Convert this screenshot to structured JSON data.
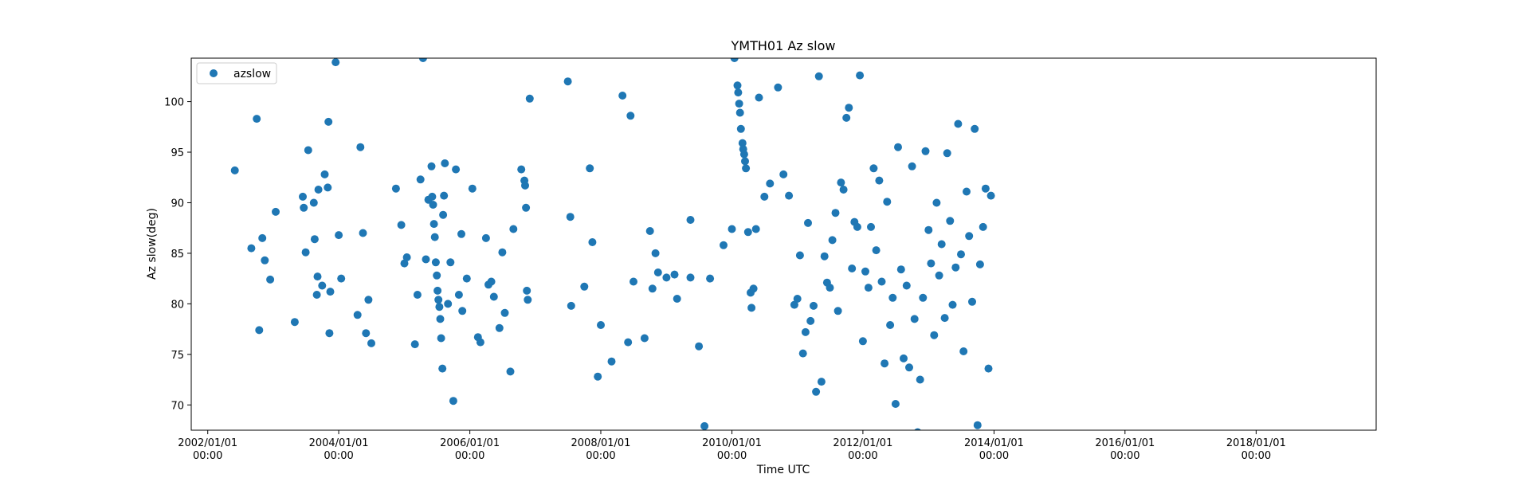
{
  "chart_data": {
    "type": "scatter",
    "title": "YMTH01 Az slow",
    "xlabel": "Time UTC",
    "ylabel": "Az slow(deg)",
    "xlim": [
      "2001-10-01",
      "2019-11-01"
    ],
    "ylim": [
      67.5,
      104.3
    ],
    "x_ticks": [
      {
        "date": "2002-01-01",
        "line1": "2002/01/01",
        "line2": "00:00"
      },
      {
        "date": "2004-01-01",
        "line1": "2004/01/01",
        "line2": "00:00"
      },
      {
        "date": "2006-01-01",
        "line1": "2006/01/01",
        "line2": "00:00"
      },
      {
        "date": "2008-01-01",
        "line1": "2008/01/01",
        "line2": "00:00"
      },
      {
        "date": "2010-01-01",
        "line1": "2010/01/01",
        "line2": "00:00"
      },
      {
        "date": "2012-01-01",
        "line1": "2012/01/01",
        "line2": "00:00"
      },
      {
        "date": "2014-01-01",
        "line1": "2014/01/01",
        "line2": "00:00"
      },
      {
        "date": "2016-01-01",
        "line1": "2016/01/01",
        "line2": "00:00"
      },
      {
        "date": "2018-01-01",
        "line1": "2018/01/01",
        "line2": "00:00"
      }
    ],
    "y_ticks": [
      70,
      75,
      80,
      85,
      90,
      95,
      100
    ],
    "grid": false,
    "legend": {
      "placement": "top-left"
    },
    "marker_color": "#1f77b4",
    "series": [
      {
        "name": "azslow",
        "points": [
          [
            "2002-06-01",
            93.2
          ],
          [
            "2002-09-01",
            85.5
          ],
          [
            "2002-10-01",
            98.3
          ],
          [
            "2002-10-15",
            77.4
          ],
          [
            "2002-11-01",
            86.5
          ],
          [
            "2002-11-15",
            84.3
          ],
          [
            "2002-12-15",
            82.4
          ],
          [
            "2003-01-15",
            89.1
          ],
          [
            "2003-05-01",
            78.2
          ],
          [
            "2003-06-15",
            90.6
          ],
          [
            "2003-06-20",
            89.5
          ],
          [
            "2003-07-01",
            85.1
          ],
          [
            "2003-07-15",
            95.2
          ],
          [
            "2003-08-15",
            90.0
          ],
          [
            "2003-08-20",
            86.4
          ],
          [
            "2003-09-01",
            80.9
          ],
          [
            "2003-09-05",
            82.7
          ],
          [
            "2003-09-10",
            91.3
          ],
          [
            "2003-10-01",
            81.8
          ],
          [
            "2003-10-15",
            92.8
          ],
          [
            "2003-11-01",
            91.5
          ],
          [
            "2003-11-05",
            98.0
          ],
          [
            "2003-11-10",
            77.1
          ],
          [
            "2003-11-15",
            81.2
          ],
          [
            "2003-12-15",
            103.9
          ],
          [
            "2004-01-01",
            86.8
          ],
          [
            "2004-01-15",
            82.5
          ],
          [
            "2004-04-15",
            78.9
          ],
          [
            "2004-05-01",
            95.5
          ],
          [
            "2004-05-15",
            87.0
          ],
          [
            "2004-06-01",
            77.1
          ],
          [
            "2004-06-15",
            80.4
          ],
          [
            "2004-07-01",
            76.1
          ],
          [
            "2004-11-15",
            91.4
          ],
          [
            "2004-12-15",
            87.8
          ],
          [
            "2005-01-15",
            84.6
          ],
          [
            "2005-01-01",
            84.0
          ],
          [
            "2005-03-01",
            76.0
          ],
          [
            "2005-03-15",
            80.9
          ],
          [
            "2005-04-01",
            92.3
          ],
          [
            "2005-04-15",
            104.3
          ],
          [
            "2005-05-01",
            84.4
          ],
          [
            "2005-05-15",
            90.3
          ],
          [
            "2005-06-01",
            93.6
          ],
          [
            "2005-06-05",
            90.6
          ],
          [
            "2005-06-10",
            89.8
          ],
          [
            "2005-06-15",
            87.9
          ],
          [
            "2005-06-20",
            86.6
          ],
          [
            "2005-06-25",
            84.1
          ],
          [
            "2005-07-01",
            82.8
          ],
          [
            "2005-07-05",
            81.3
          ],
          [
            "2005-07-10",
            80.4
          ],
          [
            "2005-07-15",
            79.7
          ],
          [
            "2005-07-20",
            78.5
          ],
          [
            "2005-07-25",
            76.6
          ],
          [
            "2005-08-01",
            73.6
          ],
          [
            "2005-08-05",
            88.8
          ],
          [
            "2005-08-10",
            90.7
          ],
          [
            "2005-08-15",
            93.9
          ],
          [
            "2005-09-01",
            80.0
          ],
          [
            "2005-09-15",
            84.1
          ],
          [
            "2005-10-01",
            70.4
          ],
          [
            "2005-10-15",
            93.3
          ],
          [
            "2005-11-01",
            80.9
          ],
          [
            "2005-11-15",
            86.9
          ],
          [
            "2005-11-20",
            79.3
          ],
          [
            "2005-12-15",
            82.5
          ],
          [
            "2006-01-15",
            91.4
          ],
          [
            "2006-02-15",
            76.7
          ],
          [
            "2006-03-01",
            76.2
          ],
          [
            "2006-04-01",
            86.5
          ],
          [
            "2006-04-15",
            81.9
          ],
          [
            "2006-05-01",
            82.2
          ],
          [
            "2006-05-15",
            80.7
          ],
          [
            "2006-06-15",
            77.6
          ],
          [
            "2006-07-01",
            85.1
          ],
          [
            "2006-07-15",
            79.1
          ],
          [
            "2006-08-15",
            73.3
          ],
          [
            "2006-09-01",
            87.4
          ],
          [
            "2006-10-15",
            93.3
          ],
          [
            "2006-11-01",
            92.2
          ],
          [
            "2006-11-05",
            91.7
          ],
          [
            "2006-11-10",
            89.5
          ],
          [
            "2006-11-15",
            81.3
          ],
          [
            "2006-11-20",
            80.4
          ],
          [
            "2006-12-01",
            100.3
          ],
          [
            "2007-07-01",
            102.0
          ],
          [
            "2007-07-15",
            88.6
          ],
          [
            "2007-07-20",
            79.8
          ],
          [
            "2007-10-01",
            81.7
          ],
          [
            "2007-11-01",
            93.4
          ],
          [
            "2007-11-15",
            86.1
          ],
          [
            "2007-12-15",
            72.8
          ],
          [
            "2008-01-01",
            77.9
          ],
          [
            "2008-03-01",
            74.3
          ],
          [
            "2008-05-01",
            100.6
          ],
          [
            "2008-06-01",
            76.2
          ],
          [
            "2008-06-15",
            98.6
          ],
          [
            "2008-07-01",
            82.2
          ],
          [
            "2008-09-01",
            76.6
          ],
          [
            "2008-10-01",
            87.2
          ],
          [
            "2008-10-15",
            81.5
          ],
          [
            "2008-11-01",
            85.0
          ],
          [
            "2008-11-15",
            83.1
          ],
          [
            "2009-01-01",
            82.6
          ],
          [
            "2009-02-15",
            82.9
          ],
          [
            "2009-03-01",
            80.5
          ],
          [
            "2009-05-15",
            88.3
          ],
          [
            "2009-05-15",
            82.6
          ],
          [
            "2009-07-01",
            75.8
          ],
          [
            "2009-08-01",
            67.9
          ],
          [
            "2009-09-01",
            82.5
          ],
          [
            "2009-11-15",
            85.8
          ],
          [
            "2010-01-01",
            87.4
          ],
          [
            "2010-01-15",
            104.3
          ],
          [
            "2010-02-01",
            101.6
          ],
          [
            "2010-02-05",
            100.9
          ],
          [
            "2010-02-10",
            99.8
          ],
          [
            "2010-02-15",
            98.9
          ],
          [
            "2010-02-20",
            97.3
          ],
          [
            "2010-03-01",
            95.9
          ],
          [
            "2010-03-05",
            95.3
          ],
          [
            "2010-03-10",
            94.8
          ],
          [
            "2010-03-15",
            94.1
          ],
          [
            "2010-03-20",
            93.4
          ],
          [
            "2010-04-01",
            87.1
          ],
          [
            "2010-04-15",
            81.1
          ],
          [
            "2010-04-20",
            79.6
          ],
          [
            "2010-05-01",
            81.5
          ],
          [
            "2010-05-15",
            87.4
          ],
          [
            "2010-06-01",
            100.4
          ],
          [
            "2010-07-01",
            90.6
          ],
          [
            "2010-08-01",
            91.9
          ],
          [
            "2010-09-15",
            101.4
          ],
          [
            "2010-10-15",
            92.8
          ],
          [
            "2010-11-15",
            90.7
          ],
          [
            "2010-12-15",
            79.9
          ],
          [
            "2011-01-01",
            80.5
          ],
          [
            "2011-01-15",
            84.8
          ],
          [
            "2011-02-01",
            75.1
          ],
          [
            "2011-02-15",
            77.2
          ],
          [
            "2011-03-01",
            88.0
          ],
          [
            "2011-03-15",
            78.3
          ],
          [
            "2011-04-01",
            79.8
          ],
          [
            "2011-04-15",
            71.3
          ],
          [
            "2011-05-01",
            102.5
          ],
          [
            "2011-05-15",
            72.3
          ],
          [
            "2011-06-01",
            84.7
          ],
          [
            "2011-06-15",
            82.1
          ],
          [
            "2011-07-01",
            81.6
          ],
          [
            "2011-07-15",
            86.3
          ],
          [
            "2011-08-01",
            89.0
          ],
          [
            "2011-08-15",
            79.3
          ],
          [
            "2011-09-01",
            92.0
          ],
          [
            "2011-09-15",
            91.3
          ],
          [
            "2011-10-01",
            98.4
          ],
          [
            "2011-10-15",
            99.4
          ],
          [
            "2011-11-01",
            83.5
          ],
          [
            "2011-11-15",
            88.1
          ],
          [
            "2011-12-01",
            87.6
          ],
          [
            "2011-12-15",
            102.6
          ],
          [
            "2012-01-01",
            76.3
          ],
          [
            "2012-01-15",
            83.2
          ],
          [
            "2012-02-01",
            81.6
          ],
          [
            "2012-02-15",
            87.6
          ],
          [
            "2012-03-01",
            93.4
          ],
          [
            "2012-03-15",
            85.3
          ],
          [
            "2012-04-01",
            92.2
          ],
          [
            "2012-04-15",
            82.2
          ],
          [
            "2012-05-01",
            74.1
          ],
          [
            "2012-05-15",
            90.1
          ],
          [
            "2012-06-01",
            77.9
          ],
          [
            "2012-06-15",
            80.6
          ],
          [
            "2012-07-01",
            70.1
          ],
          [
            "2012-07-15",
            95.5
          ],
          [
            "2012-08-01",
            83.4
          ],
          [
            "2012-08-15",
            74.6
          ],
          [
            "2012-09-01",
            81.8
          ],
          [
            "2012-09-15",
            73.7
          ],
          [
            "2012-10-01",
            93.6
          ],
          [
            "2012-10-15",
            78.5
          ],
          [
            "2012-11-01",
            67.3
          ],
          [
            "2012-11-15",
            72.5
          ],
          [
            "2012-12-01",
            80.6
          ],
          [
            "2012-12-15",
            95.1
          ],
          [
            "2013-01-01",
            87.3
          ],
          [
            "2013-01-15",
            84.0
          ],
          [
            "2013-02-01",
            76.9
          ],
          [
            "2013-02-15",
            90.0
          ],
          [
            "2013-03-01",
            82.8
          ],
          [
            "2013-03-15",
            85.9
          ],
          [
            "2013-04-01",
            78.6
          ],
          [
            "2013-04-15",
            94.9
          ],
          [
            "2013-05-01",
            88.2
          ],
          [
            "2013-05-15",
            79.9
          ],
          [
            "2013-06-01",
            83.6
          ],
          [
            "2013-06-15",
            97.8
          ],
          [
            "2013-07-01",
            84.9
          ],
          [
            "2013-07-15",
            75.3
          ],
          [
            "2013-08-01",
            91.1
          ],
          [
            "2013-08-15",
            86.7
          ],
          [
            "2013-09-01",
            80.2
          ],
          [
            "2013-09-15",
            97.3
          ],
          [
            "2013-10-01",
            68.0
          ],
          [
            "2013-10-15",
            83.9
          ],
          [
            "2013-11-01",
            87.6
          ],
          [
            "2013-11-15",
            91.4
          ],
          [
            "2013-12-01",
            73.6
          ],
          [
            "2013-12-15",
            90.7
          ]
        ]
      }
    ]
  }
}
